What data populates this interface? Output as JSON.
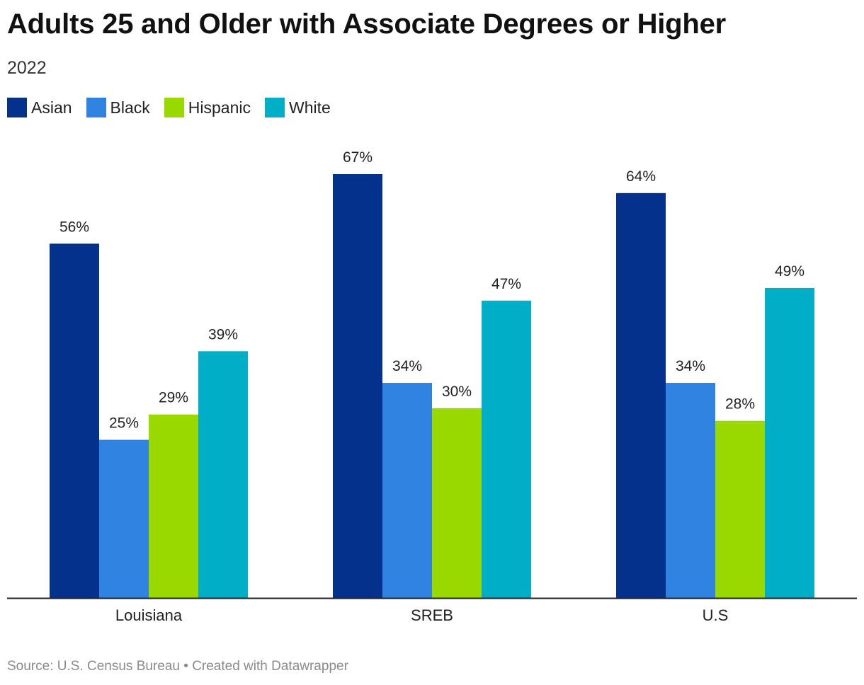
{
  "title": "Adults 25 and Older with Associate Degrees or Higher",
  "subtitle": "2022",
  "footer": {
    "source": "Source: U.S. Census Bureau",
    "separator": " • ",
    "credit": "Created with Datawrapper"
  },
  "chart_data": {
    "type": "bar",
    "categories": [
      "Louisiana",
      "SREB",
      "U.S"
    ],
    "series": [
      {
        "name": "Asian",
        "color": "#03318c",
        "values": [
          56,
          67,
          64
        ],
        "labels": [
          "56%",
          "67%",
          "64%"
        ]
      },
      {
        "name": "Black",
        "color": "#3083e1",
        "values": [
          25,
          34,
          34
        ],
        "labels": [
          "25%",
          "34%",
          "34%"
        ]
      },
      {
        "name": "Hispanic",
        "color": "#9ad900",
        "values": [
          29,
          30,
          28
        ],
        "labels": [
          "29%",
          "30%",
          "28%"
        ]
      },
      {
        "name": "White",
        "color": "#00aec7",
        "values": [
          39,
          47,
          49
        ],
        "labels": [
          "39%",
          "47%",
          "49%"
        ]
      }
    ],
    "ylim": [
      0,
      67
    ],
    "grid": false,
    "legend_position": "top-left"
  }
}
